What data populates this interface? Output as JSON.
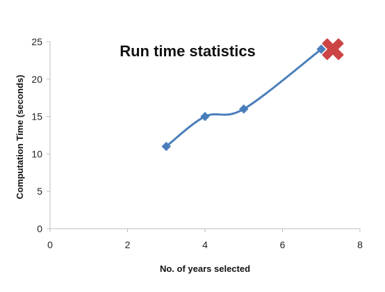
{
  "chart_data": {
    "type": "line",
    "title": "Run time statistics",
    "xlabel": "No. of years selected",
    "ylabel": "Computation Time (seconds)",
    "xlim": [
      0,
      8
    ],
    "ylim": [
      0,
      25
    ],
    "x_ticks": [
      "0",
      "2",
      "4",
      "6",
      "8"
    ],
    "y_ticks": [
      "0",
      "5",
      "10",
      "15",
      "20",
      "25"
    ],
    "grid": false,
    "legend": "none",
    "series": [
      {
        "x": [
          3,
          4,
          5,
          7
        ],
        "y": [
          11,
          15,
          16,
          24
        ],
        "color": "#4a7ebb",
        "marker": "diamond",
        "smooth": true
      }
    ],
    "annotations": [
      {
        "type": "cross-marker",
        "x": 7.3,
        "y": 24,
        "color": "#cc4444"
      }
    ]
  }
}
